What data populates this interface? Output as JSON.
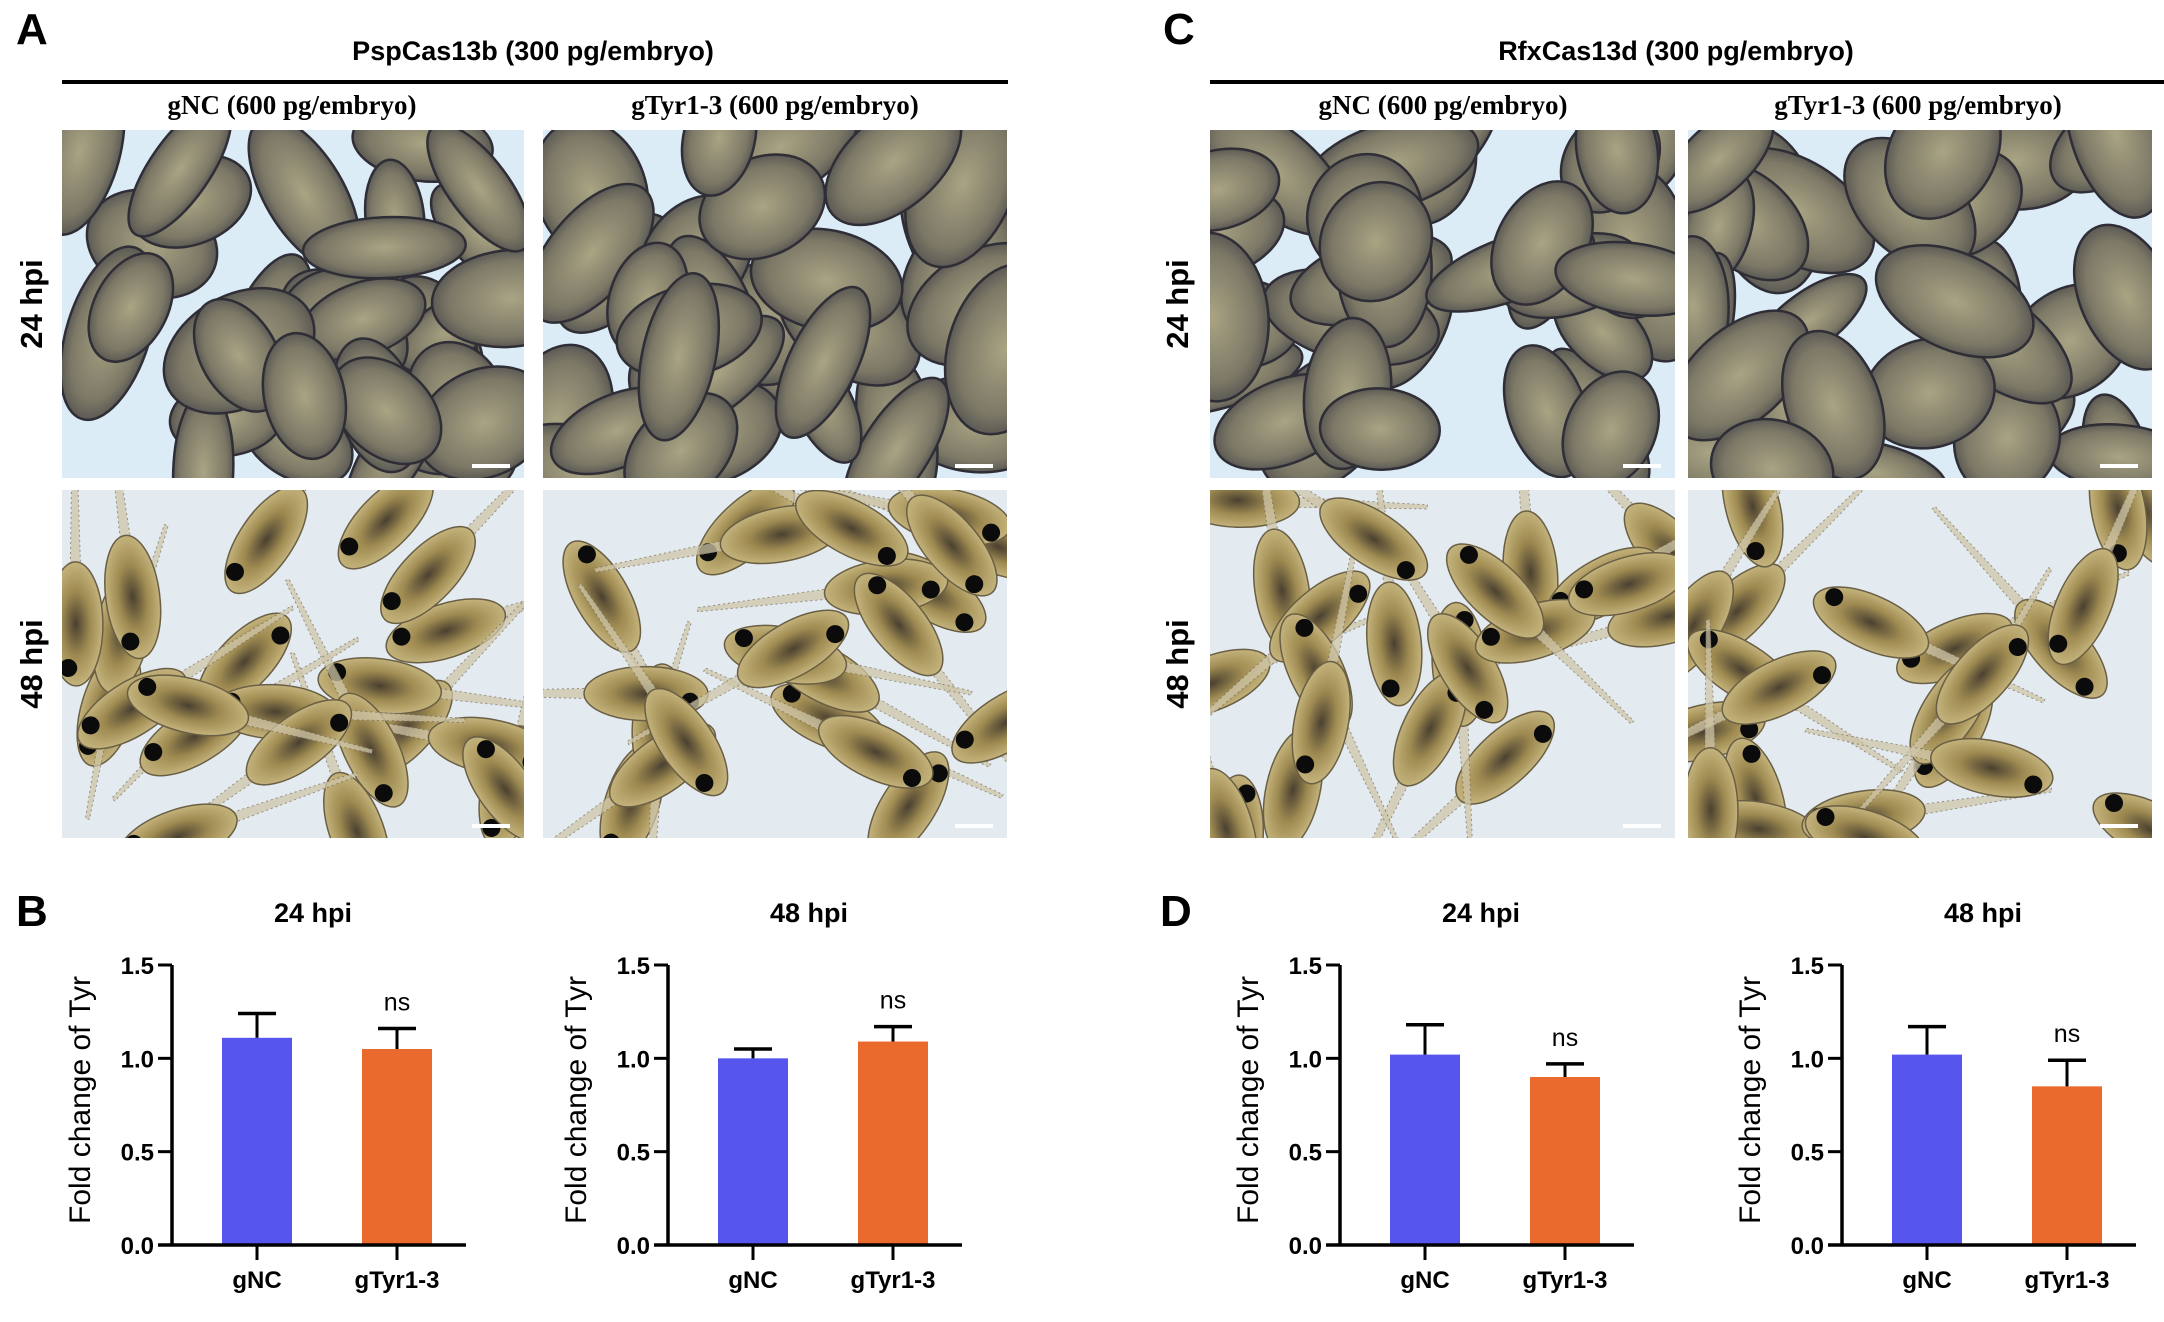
{
  "figure": {
    "panels": {
      "A": {
        "letter": "A",
        "group_title": "PspCas13b (300 pg/embryo)",
        "columns": [
          "gNC (600 pg/embryo)",
          "gTyr1-3 (600 pg/embryo)"
        ],
        "rows": [
          "24 hpi",
          "48 hpi"
        ]
      },
      "B": {
        "letter": "B"
      },
      "C": {
        "letter": "C",
        "group_title": "RfxCas13d (300 pg/embryo)",
        "columns": [
          "gNC (600 pg/embryo)",
          "gTyr1-3 (600 pg/embryo)"
        ],
        "rows": [
          "24 hpi",
          "48 hpi"
        ]
      },
      "D": {
        "letter": "D"
      }
    },
    "photo_descriptions": {
      "24 hpi": "Xenopus embryos (tailbud stage), grey-brown elongated embryos on light blue background, scale bar bottom-right",
      "48 hpi": "Xenopus tadpoles with black eyes and dark pigment on yellowish bodies, scale bar bottom-right"
    },
    "colors": {
      "gNC": "#5656EE",
      "gTyr1-3": "#EA6A2E",
      "axis": "#000000"
    }
  },
  "chart_data": [
    {
      "panel": "B",
      "type": "bar",
      "title": "24 hpi",
      "ylabel": "Fold change of Tyr",
      "xlabel": "",
      "categories": [
        "gNC",
        "gTyr1-3"
      ],
      "values": [
        1.11,
        1.05
      ],
      "error_upper": [
        1.24,
        1.16
      ],
      "annotations": [
        "",
        "ns"
      ],
      "ylim": [
        0,
        1.5
      ],
      "yticks": [
        "0.0",
        "0.5",
        "1.0",
        "1.5"
      ],
      "grid": false
    },
    {
      "panel": "B",
      "type": "bar",
      "title": "48 hpi",
      "ylabel": "Fold change of Tyr",
      "xlabel": "",
      "categories": [
        "gNC",
        "gTyr1-3"
      ],
      "values": [
        1.0,
        1.09
      ],
      "error_upper": [
        1.05,
        1.17
      ],
      "annotations": [
        "",
        "ns"
      ],
      "ylim": [
        0,
        1.5
      ],
      "yticks": [
        "0.0",
        "0.5",
        "1.0",
        "1.5"
      ],
      "grid": false
    },
    {
      "panel": "D",
      "type": "bar",
      "title": "24 hpi",
      "ylabel": "Fold change of Tyr",
      "xlabel": "",
      "categories": [
        "gNC",
        "gTyr1-3"
      ],
      "values": [
        1.02,
        0.9
      ],
      "error_upper": [
        1.18,
        0.97
      ],
      "annotations": [
        "",
        "ns"
      ],
      "ylim": [
        0,
        1.5
      ],
      "yticks": [
        "0.0",
        "0.5",
        "1.0",
        "1.5"
      ],
      "grid": false
    },
    {
      "panel": "D",
      "type": "bar",
      "title": "48 hpi",
      "ylabel": "Fold change of Tyr",
      "xlabel": "",
      "categories": [
        "gNC",
        "gTyr1-3"
      ],
      "values": [
        1.02,
        0.85
      ],
      "error_upper": [
        1.17,
        0.99
      ],
      "annotations": [
        "",
        "ns"
      ],
      "ylim": [
        0,
        1.5
      ],
      "yticks": [
        "0.0",
        "0.5",
        "1.0",
        "1.5"
      ],
      "grid": false
    }
  ]
}
